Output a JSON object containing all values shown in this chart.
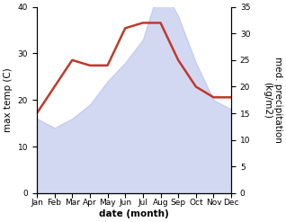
{
  "months": [
    "Jan",
    "Feb",
    "Mar",
    "Apr",
    "May",
    "Jun",
    "Jul",
    "Aug",
    "Sep",
    "Oct",
    "Nov",
    "Dec"
  ],
  "max_temp": [
    16,
    14,
    16,
    19,
    24,
    28,
    33,
    45,
    38,
    28,
    20,
    18
  ],
  "precipitation": [
    15,
    20,
    25,
    24,
    24,
    31,
    32,
    32,
    25,
    20,
    18,
    18
  ],
  "temp_ylim": [
    0,
    40
  ],
  "temp_yticks": [
    0,
    10,
    20,
    30,
    40
  ],
  "precip_ylim": [
    0,
    35
  ],
  "precip_yticks": [
    0,
    5,
    10,
    15,
    20,
    25,
    30,
    35
  ],
  "fill_color": "#b0b8e8",
  "fill_alpha": 0.55,
  "line_color": "#c0392b",
  "line_width": 1.8,
  "xlabel": "date (month)",
  "ylabel_left": "max temp (C)",
  "ylabel_right": "med. precipitation (kg/m2)",
  "bg_color": "#ffffff",
  "label_fontsize": 7.5,
  "tick_fontsize": 6.5
}
